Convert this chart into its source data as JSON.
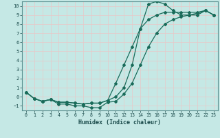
{
  "xlabel": "Humidex (Indice chaleur)",
  "bg_color": "#c5e8e5",
  "grid_color": "#d8eded",
  "line_color": "#1a6b5a",
  "xlim": [
    -0.5,
    23.5
  ],
  "ylim": [
    -1.5,
    10.5
  ],
  "xticks": [
    0,
    1,
    2,
    3,
    4,
    5,
    6,
    7,
    8,
    9,
    10,
    11,
    12,
    13,
    14,
    15,
    16,
    17,
    18,
    19,
    20,
    21,
    22,
    23
  ],
  "yticks": [
    -1,
    0,
    1,
    2,
    3,
    4,
    5,
    6,
    7,
    8,
    9,
    10
  ],
  "curve1_x": [
    0,
    1,
    2,
    3,
    4,
    5,
    6,
    7,
    8,
    9,
    10,
    11,
    12,
    13,
    14,
    15,
    16,
    17,
    18,
    19,
    20,
    21,
    22,
    23
  ],
  "curve1_y": [
    0.5,
    -0.2,
    -0.5,
    -0.3,
    -0.6,
    -0.6,
    -0.7,
    -0.8,
    -0.7,
    -0.7,
    -0.4,
    0.0,
    1.0,
    3.5,
    7.5,
    10.2,
    10.5,
    10.2,
    9.5,
    9.0,
    9.0,
    9.0,
    9.5,
    9.0
  ],
  "curve2_x": [
    0,
    1,
    2,
    3,
    4,
    5,
    6,
    7,
    8,
    9,
    10,
    11,
    12,
    13,
    14,
    15,
    16,
    17,
    18,
    19,
    20,
    21,
    22,
    23
  ],
  "curve2_y": [
    0.5,
    -0.2,
    -0.5,
    -0.3,
    -0.6,
    -0.6,
    -0.7,
    -0.8,
    -0.7,
    -0.7,
    -0.4,
    1.5,
    3.5,
    5.5,
    7.5,
    8.5,
    9.0,
    9.3,
    9.3,
    9.3,
    9.3,
    9.3,
    9.5,
    9.0
  ],
  "curve3_x": [
    0,
    1,
    2,
    3,
    4,
    5,
    6,
    7,
    8,
    9,
    10,
    11,
    12,
    13,
    14,
    15,
    16,
    17,
    18,
    19,
    20,
    21,
    22,
    23
  ],
  "curve3_y": [
    0.5,
    -0.2,
    -0.5,
    -0.3,
    -0.8,
    -0.8,
    -1.0,
    -1.0,
    -1.2,
    -1.2,
    -0.6,
    -0.5,
    0.3,
    1.5,
    3.5,
    5.5,
    7.0,
    8.0,
    8.5,
    8.8,
    9.0,
    9.2,
    9.5,
    9.0
  ]
}
